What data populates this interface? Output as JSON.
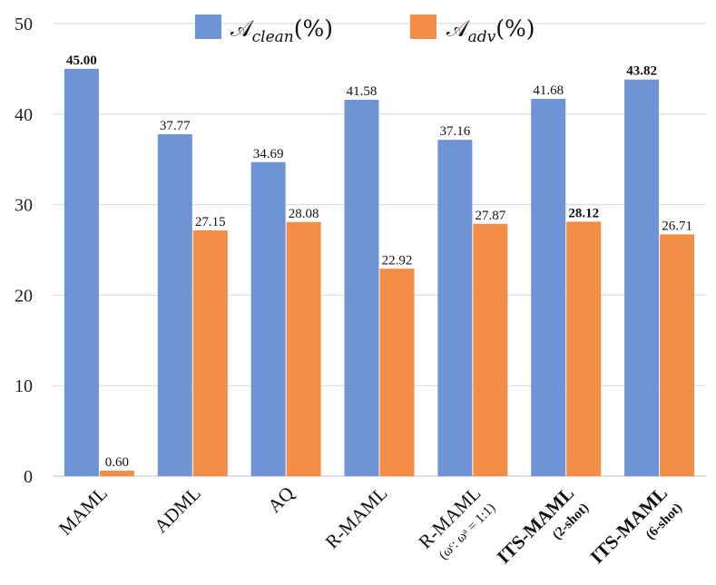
{
  "chart_data": {
    "type": "bar",
    "categories": [
      {
        "label": "MAML",
        "sub": "",
        "bold": false
      },
      {
        "label": "ADML",
        "sub": "",
        "bold": false
      },
      {
        "label": "AQ",
        "sub": "",
        "bold": false
      },
      {
        "label": "R-MAML",
        "sub": "",
        "bold": false
      },
      {
        "label": "R-MAML",
        "sub": "(ωᶜ: ωᵃ = 1:1)",
        "bold": false
      },
      {
        "label": "ITS-MAML",
        "sub": "(2-shot)",
        "bold": true
      },
      {
        "label": "ITS-MAML",
        "sub": "(6-shot)",
        "bold": true
      }
    ],
    "series": [
      {
        "name": "A_clean(%)",
        "legend_main": "𝒜",
        "legend_sub": "clean",
        "legend_tail": "(%)",
        "color": "#6E94D6",
        "values": [
          45.0,
          37.77,
          34.69,
          41.58,
          37.16,
          41.68,
          43.82
        ],
        "labels": [
          "45.00",
          "37.77",
          "34.69",
          "41.58",
          "37.16",
          "41.68",
          "43.82"
        ],
        "bold": [
          true,
          false,
          false,
          false,
          false,
          false,
          true
        ]
      },
      {
        "name": "A_adv(%)",
        "legend_main": "𝒜",
        "legend_sub": "adv",
        "legend_tail": "(%)",
        "color": "#F28E45",
        "values": [
          0.6,
          null,
          28.08,
          22.92,
          27.87,
          28.12,
          26.71
        ],
        "labels": [
          "0.60",
          "27.15",
          "28.08",
          "22.92",
          "27.87",
          "28.12",
          "26.71"
        ],
        "bold": [
          false,
          false,
          false,
          false,
          false,
          true,
          false
        ]
      }
    ],
    "ylim": [
      0,
      50
    ],
    "yticks": [
      "0",
      "10",
      "20",
      "30",
      "40",
      "50"
    ],
    "grid": true,
    "legend": "top-center",
    "title": "",
    "xlabel": "",
    "ylabel": ""
  }
}
